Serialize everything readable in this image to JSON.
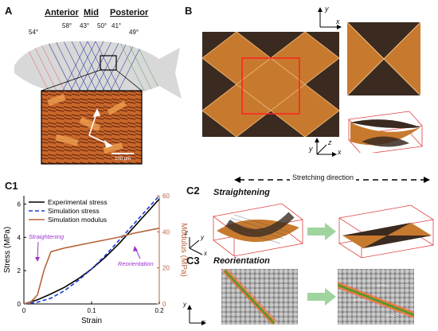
{
  "panelA": {
    "label": "A",
    "regions": {
      "anterior": "Anterior",
      "mid": "Mid",
      "posterior": "Posterior"
    },
    "angles": [
      "54°",
      "58°",
      "43°",
      "50°",
      "41°",
      "49°"
    ],
    "scale_bar": "100 µm"
  },
  "panelB": {
    "label": "B",
    "axis_y": "y",
    "axis_x": "x",
    "axis_z": "z"
  },
  "panelC1": {
    "label": "C1",
    "annotations": {
      "straightening": "Straightening",
      "reorientation": "Reorientation"
    }
  },
  "panelC2": {
    "label": "C2",
    "title": "Straightening",
    "stretching_direction": "Stretching direction",
    "axis_y": "y",
    "axis_x": "x",
    "axis_z": "z"
  },
  "panelC3": {
    "label": "C3",
    "title": "Reorientation",
    "axis_y": "y",
    "axis_x": "x"
  },
  "colors": {
    "experimental": "#000000",
    "sim_stress": "#1f3dd6",
    "sim_modulus": "#b8653b",
    "annotation": "#9933cc",
    "fiber_orange": "#d9822b",
    "fiber_dark": "#3a2a20"
  },
  "chart_data": {
    "type": "line",
    "xlabel": "Strain",
    "ylabel": "Stress (MPa)",
    "y2label": "Modulus (MPa)",
    "xlim": [
      0,
      0.2
    ],
    "ylim": [
      0,
      6.5
    ],
    "y2lim": [
      0,
      60
    ],
    "x_ticks": [
      "0",
      "0.1",
      "0.2"
    ],
    "y_ticks": [
      "0",
      "2",
      "4",
      "6"
    ],
    "y2_ticks": [
      "0",
      "20",
      "40",
      "60"
    ],
    "legend_position": "top-left",
    "series": [
      {
        "name": "Experimental stress",
        "axis": "left",
        "style": "solid",
        "x": [
          0,
          0.02,
          0.04,
          0.06,
          0.08,
          0.1,
          0.12,
          0.14,
          0.16,
          0.18,
          0.2
        ],
        "y": [
          0,
          0.25,
          0.6,
          1.0,
          1.5,
          2.1,
          2.8,
          3.6,
          4.5,
          5.4,
          6.3
        ]
      },
      {
        "name": "Simulation stress",
        "axis": "left",
        "style": "dashed",
        "x": [
          0,
          0.02,
          0.04,
          0.06,
          0.08,
          0.1,
          0.12,
          0.14,
          0.16,
          0.18,
          0.2
        ],
        "y": [
          0,
          0.1,
          0.35,
          0.8,
          1.4,
          2.1,
          2.9,
          3.8,
          4.7,
          5.6,
          6.5
        ]
      },
      {
        "name": "Simulation modulus",
        "axis": "right",
        "style": "solid",
        "x": [
          0,
          0.01,
          0.02,
          0.03,
          0.04,
          0.06,
          0.08,
          0.1,
          0.12,
          0.14,
          0.16,
          0.18,
          0.2
        ],
        "y": [
          0,
          1,
          5,
          19,
          29,
          31,
          32.5,
          34,
          35.5,
          37,
          39,
          40.5,
          42
        ]
      }
    ]
  }
}
